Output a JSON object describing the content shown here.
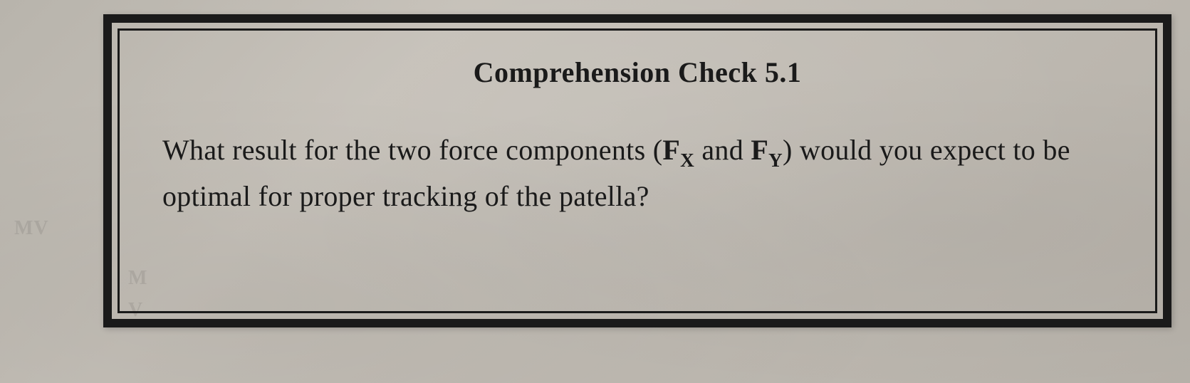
{
  "box": {
    "heading": "Comprehension Check 5.1",
    "body_prefix": "What result for the two force components (",
    "force1_letter": "F",
    "force1_sub": "X",
    "connector": " and ",
    "force2_letter": "F",
    "force2_sub": "Y",
    "body_suffix": ") would you expect to be optimal for proper tracking of the patella?"
  },
  "colors": {
    "border": "#1a1a1a",
    "text": "#1a1a1a",
    "paper": "#bfbab2"
  }
}
